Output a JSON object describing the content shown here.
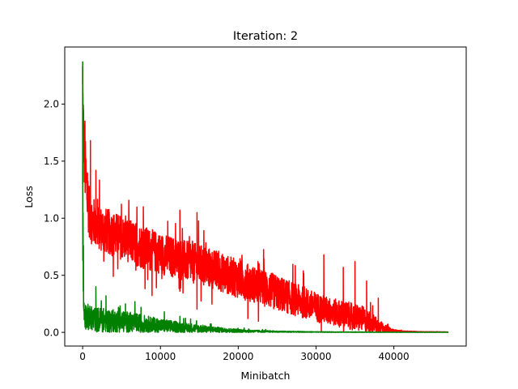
{
  "chart_data": {
    "type": "line",
    "title": "Iteration: 2",
    "xlabel": "Minibatch",
    "ylabel": "Loss",
    "xlim": [
      -2300,
      49300
    ],
    "ylim": [
      -0.12,
      2.5
    ],
    "xticks": [
      0,
      10000,
      20000,
      30000,
      40000
    ],
    "xtick_labels": [
      "0",
      "10000",
      "20000",
      "30000",
      "40000"
    ],
    "yticks": [
      0.0,
      0.5,
      1.0,
      1.5,
      2.0
    ],
    "ytick_labels": [
      "0.0",
      "0.5",
      "1.0",
      "1.5",
      "2.0"
    ],
    "grid": false,
    "legend": false,
    "series": [
      {
        "color": "#ff0000",
        "x": [
          0,
          200,
          500,
          1000,
          2000,
          4000,
          6000,
          8000,
          10000,
          12000,
          14000,
          16000,
          18000,
          20000,
          22000,
          24000,
          26000,
          28000,
          30000,
          32000,
          34000,
          36000,
          37000,
          38000,
          39000,
          40000,
          41000,
          43000,
          45000,
          47000
        ],
        "mean": [
          2.1,
          1.55,
          1.25,
          1.0,
          0.92,
          0.86,
          0.8,
          0.74,
          0.69,
          0.65,
          0.61,
          0.57,
          0.52,
          0.47,
          0.42,
          0.37,
          0.32,
          0.27,
          0.22,
          0.18,
          0.15,
          0.12,
          0.09,
          0.06,
          0.03,
          0.015,
          0.008,
          0.005,
          0.004,
          0.003
        ],
        "spread": [
          0.25,
          0.3,
          0.3,
          0.22,
          0.2,
          0.2,
          0.19,
          0.19,
          0.18,
          0.18,
          0.18,
          0.18,
          0.17,
          0.17,
          0.16,
          0.16,
          0.15,
          0.14,
          0.13,
          0.12,
          0.12,
          0.11,
          0.09,
          0.06,
          0.03,
          0.01,
          0.006,
          0.003,
          0.002,
          0.001
        ],
        "spikes": [
          [
            0,
            2.33
          ],
          [
            300,
            1.85
          ],
          [
            1000,
            1.68
          ],
          [
            1700,
            1.42
          ],
          [
            7800,
            1.1
          ],
          [
            12500,
            1.07
          ],
          [
            14700,
            1.05
          ],
          [
            31000,
            0.68
          ],
          [
            35000,
            0.62
          ],
          [
            33500,
            0.57
          ],
          [
            36500,
            0.45
          ],
          [
            38000,
            0.3
          ]
        ]
      },
      {
        "color": "#008000",
        "x": [
          0,
          100,
          300,
          1000,
          2000,
          4000,
          6000,
          8000,
          10000,
          12000,
          14000,
          16000,
          18000,
          20000,
          22000,
          25000,
          30000,
          35000,
          40000,
          45000,
          47000
        ],
        "mean": [
          1.2,
          0.25,
          0.15,
          0.12,
          0.11,
          0.1,
          0.09,
          0.075,
          0.06,
          0.048,
          0.038,
          0.028,
          0.02,
          0.014,
          0.01,
          0.006,
          0.003,
          0.002,
          0.001,
          0.001,
          0.001
        ],
        "spread": [
          0.5,
          0.12,
          0.12,
          0.11,
          0.11,
          0.1,
          0.09,
          0.075,
          0.06,
          0.05,
          0.04,
          0.03,
          0.02,
          0.015,
          0.01,
          0.006,
          0.003,
          0.002,
          0.001,
          0.001,
          0.001
        ],
        "spikes": [
          [
            0,
            2.37
          ],
          [
            50,
            1.05
          ],
          [
            100,
            0.76
          ],
          [
            1700,
            0.4
          ],
          [
            3000,
            0.32
          ],
          [
            5500,
            0.25
          ],
          [
            7500,
            0.22
          ],
          [
            10500,
            0.18
          ],
          [
            12500,
            0.14
          ]
        ]
      }
    ]
  }
}
